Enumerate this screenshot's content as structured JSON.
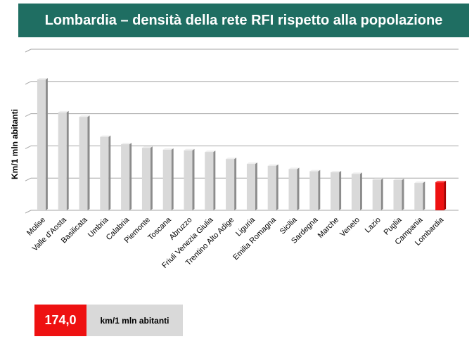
{
  "header": {
    "title": "Lombardia – densità della rete RFI rispetto alla popolazione"
  },
  "highlight": {
    "value": "174,0",
    "unit": "km/1 mln abitanti"
  },
  "colors": {
    "header_bg": "#1f6e62",
    "bar": "#d9d9d9",
    "highlight_bar": "#ee1111",
    "highlight_box": "#ee1111",
    "unit_box": "#d9d9d9"
  },
  "chart_data": {
    "type": "bar",
    "title": "Lombardia – densità della rete RFI rispetto alla popolazione",
    "xlabel": "",
    "ylabel": "Km/1 mln abitanti",
    "ylim": [
      0,
      1000
    ],
    "y_tick_labels_shown": false,
    "grid": true,
    "categories": [
      "Molise",
      "Valle d'Aosta",
      "Basilicata",
      "Umbria",
      "Calabria",
      "Piemonte",
      "Toscana",
      "Abruzzo",
      "Friuli Venezia Giulia",
      "Trentino Alto Adige",
      "Liguria",
      "Emilia Romagna",
      "Sicilia",
      "Sardegna",
      "Marche",
      "Veneto",
      "Lazio",
      "Puglia",
      "Campania",
      "Lombardia"
    ],
    "values": [
      812,
      608,
      580,
      456,
      410,
      388,
      376,
      372,
      362,
      318,
      288,
      276,
      256,
      242,
      236,
      226,
      190,
      188,
      170,
      174
    ],
    "highlight_category": "Lombardia"
  }
}
